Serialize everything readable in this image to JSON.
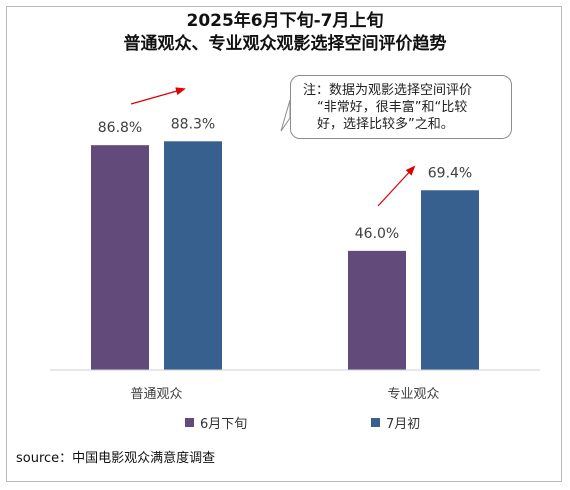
{
  "title": "2025年6月下旬-7月上旬",
  "subtitle": "普通观众、专业观众观影选择空间评价趋势",
  "note": {
    "lines": [
      "注：数据为观影选择空间评价",
      "“非常好，很丰富”和“比较",
      "好，选择比较多”之和。"
    ]
  },
  "source": "source：中国电影观众满意度调查",
  "colors": {
    "series_0": "#624a7b",
    "series_1": "#37608f",
    "arrow": "#e00000"
  },
  "chart_data": {
    "type": "bar",
    "categories": [
      "普通观众",
      "专业观众"
    ],
    "series": [
      {
        "name": "6月下旬",
        "values": [
          86.8,
          46.0
        ],
        "labels": [
          "86.8%",
          "46.0%"
        ]
      },
      {
        "name": "7月初",
        "values": [
          88.3,
          69.4
        ],
        "labels": [
          "88.3%",
          "69.4%"
        ]
      }
    ],
    "ylim": [
      0,
      100
    ],
    "grid": false,
    "legend": "bottom",
    "annotations": [
      "upward red arrow above 普通观众",
      "upward red arrow above 专业观众"
    ]
  }
}
